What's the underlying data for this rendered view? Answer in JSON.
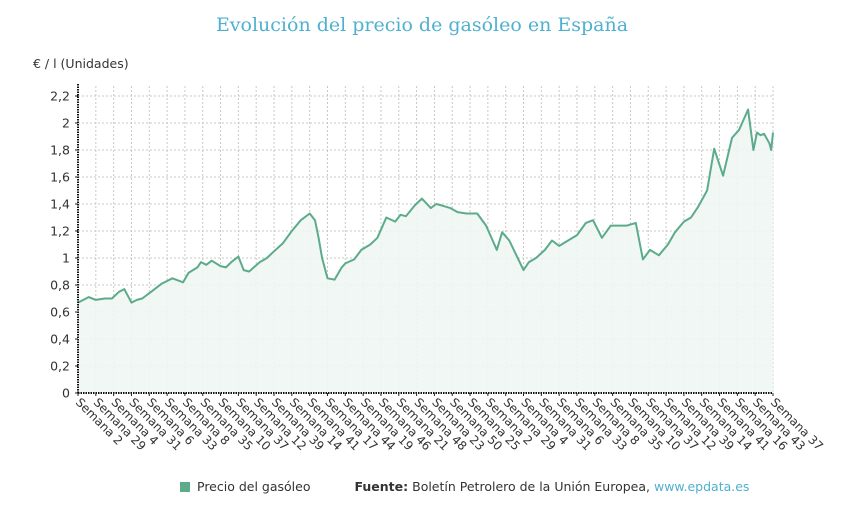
{
  "chart_data": {
    "type": "area",
    "title": "Evolución del precio de gasóleo en España",
    "ylabel": "€ / l (Unidades)",
    "xlabel": "",
    "ylim": [
      0,
      2.2
    ],
    "yticks": [
      0,
      0.2,
      0.4,
      0.6,
      0.8,
      1,
      1.2,
      1.4,
      1.6,
      1.8,
      2,
      2.2
    ],
    "ytick_labels": [
      "0",
      "0,2",
      "0,4",
      "0,6",
      "0,8",
      "1",
      "1,2",
      "1,4",
      "1,6",
      "1,8",
      "2",
      "2,2"
    ],
    "grid": true,
    "legend_position": "bottom",
    "categories": [
      "Semana 2",
      "Semana 29",
      "Semana 4",
      "Semana 31",
      "Semana 6",
      "Semana 33",
      "Semana 8",
      "Semana 35",
      "Semana 10",
      "Semana 37",
      "Semana 12",
      "Semana 39",
      "Semana 14",
      "Semana 41",
      "Semana 17",
      "Semana 44",
      "Semana 19",
      "Semana 46",
      "Semana 21",
      "Semana 48",
      "Semana 23",
      "Semana 50",
      "Semana 25",
      "Semana 2",
      "Semana 29",
      "Semana 4",
      "Semana 31",
      "Semana 6",
      "Semana 33",
      "Semana 8",
      "Semana 35",
      "Semana 10",
      "Semana 37",
      "Semana 12",
      "Semana 39",
      "Semana 14",
      "Semana 41",
      "Semana 16",
      "Semana 43",
      "Semana 37"
    ],
    "series": [
      {
        "name": "Precio del gasóleo",
        "color": "#5cab8a",
        "fill": "#eef6f3",
        "x_pos": [
          0,
          0.6,
          1,
          1.5,
          1.9,
          2.3,
          2.6,
          3,
          3.3,
          3.6,
          4.1,
          4.7,
          5.3,
          5.9,
          6.2,
          6.7,
          6.9,
          7.2,
          7.5,
          8,
          8.3,
          8.6,
          9,
          9.3,
          9.6,
          10.2,
          10.6,
          11,
          11.5,
          12,
          12.5,
          13,
          13.3,
          13.5,
          13.7,
          14,
          14.4,
          14.8,
          15,
          15.5,
          15.9,
          16.4,
          16.8,
          17.3,
          17.8,
          18.1,
          18.4,
          18.9,
          19.3,
          19.8,
          20.1,
          20.4,
          20.9,
          21.3,
          21.8,
          22.4,
          22.9,
          23.5,
          23.8,
          24.2,
          24.6,
          25,
          25.3,
          25.7,
          26.2,
          26.6,
          27,
          27.5,
          28,
          28.5,
          28.9,
          29.4,
          29.9,
          30.4,
          30.8,
          31.3,
          31.7,
          32.1,
          32.6,
          33.1,
          33.5,
          34,
          34.4,
          34.8,
          35.3,
          35.7,
          36.2,
          36.7,
          37.1,
          37.6,
          37.9,
          38.1,
          38.3,
          38.5,
          38.8,
          38.9,
          39
        ],
        "values": [
          0.67,
          0.71,
          0.69,
          0.7,
          0.7,
          0.75,
          0.77,
          0.67,
          0.69,
          0.7,
          0.75,
          0.81,
          0.85,
          0.82,
          0.89,
          0.93,
          0.97,
          0.95,
          0.98,
          0.94,
          0.93,
          0.97,
          1.01,
          0.91,
          0.9,
          0.97,
          1.0,
          1.05,
          1.11,
          1.2,
          1.28,
          1.33,
          1.28,
          1.15,
          1.0,
          0.85,
          0.84,
          0.93,
          0.96,
          0.99,
          1.06,
          1.1,
          1.15,
          1.3,
          1.27,
          1.32,
          1.31,
          1.39,
          1.44,
          1.37,
          1.4,
          1.39,
          1.37,
          1.34,
          1.33,
          1.33,
          1.24,
          1.06,
          1.19,
          1.13,
          1.02,
          0.91,
          0.97,
          1.0,
          1.06,
          1.13,
          1.09,
          1.13,
          1.17,
          1.26,
          1.28,
          1.15,
          1.24,
          1.24,
          1.24,
          1.26,
          0.99,
          1.06,
          1.02,
          1.1,
          1.19,
          1.27,
          1.3,
          1.38,
          1.5,
          1.81,
          1.61,
          1.89,
          1.95,
          2.1,
          1.8,
          1.93,
          1.91,
          1.92,
          1.85,
          1.8,
          1.93
        ]
      }
    ]
  },
  "legend": {
    "series_label": "Precio del gasóleo",
    "source_prefix": "Fuente:",
    "source_text": " Boletín Petrolero de la Unión Europea, ",
    "source_link": "www.epdata.es"
  }
}
